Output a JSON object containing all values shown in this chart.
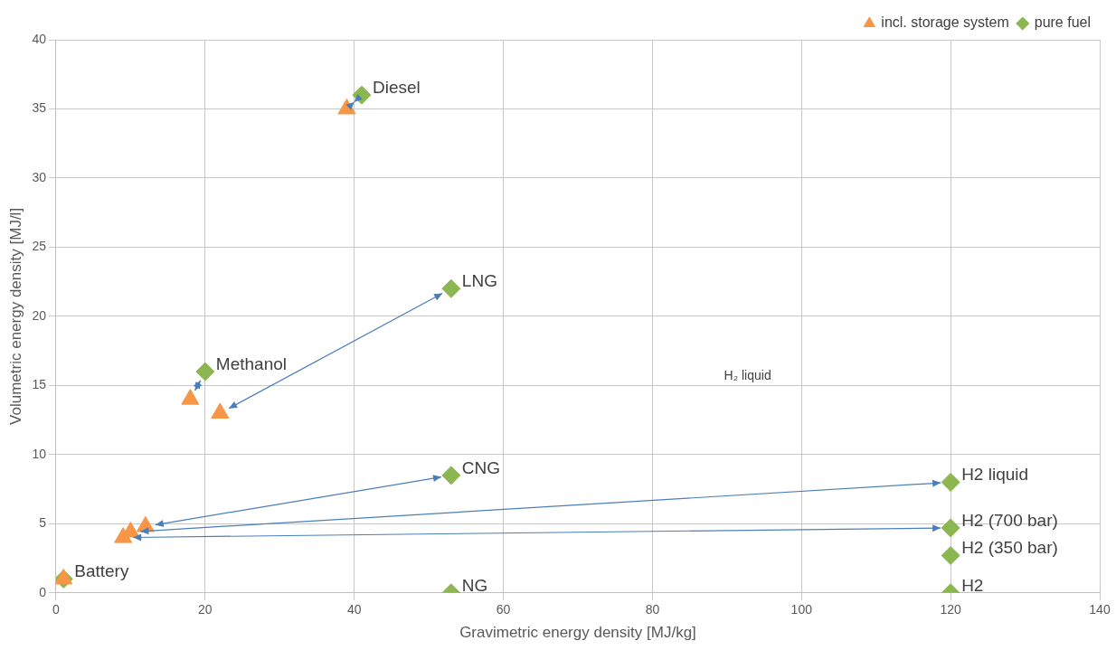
{
  "chart_data": {
    "type": "scatter",
    "xlabel": "Gravimetric energy density [MJ/kg]",
    "ylabel": "Volumetric energy density [MJ/l]",
    "xlim": [
      0,
      140
    ],
    "xticks": [
      0,
      20,
      40,
      60,
      80,
      100,
      120,
      140
    ],
    "ylim": [
      0,
      40
    ],
    "yticks": [
      0,
      5,
      10,
      15,
      20,
      25,
      30,
      35,
      40
    ],
    "grid": true,
    "legend": "top right",
    "series": [
      {
        "name": "pure fuel",
        "color": "#8cb750",
        "marker": "diamond",
        "x": [
          41,
          53,
          20,
          53,
          53,
          1,
          120,
          120,
          120,
          120
        ],
        "values": [
          36,
          22,
          16,
          8.5,
          0,
          1,
          8,
          4.7,
          2.7,
          0
        ]
      },
      {
        "name": "incl. storage system",
        "color": "#f79646",
        "marker": "triangle",
        "x": [
          39,
          22,
          18,
          12,
          null,
          1,
          10,
          9,
          null,
          null
        ],
        "values": [
          35,
          13,
          14,
          4.8,
          null,
          1,
          4.4,
          4,
          null,
          null
        ]
      }
    ],
    "annotations": [
      {
        "text": "Diesel",
        "x": 41,
        "y": 36
      },
      {
        "text": "LNG",
        "x": 53,
        "y": 22
      },
      {
        "text": "Methanol",
        "x": 20,
        "y": 16
      },
      {
        "text": "CNG",
        "x": 53,
        "y": 8.5
      },
      {
        "text": "NG",
        "x": 53,
        "y": 0
      },
      {
        "text": "Battery",
        "x": 1,
        "y": 1
      },
      {
        "text": "H2 liquid",
        "x": 120,
        "y": 8
      },
      {
        "text": "H2 (700 bar)",
        "x": 120,
        "y": 4.7
      },
      {
        "text": "H2 (350 bar)",
        "x": 120,
        "y": 2.7
      },
      {
        "text": "H2",
        "x": 120,
        "y": 0
      },
      "H₂ liquid"
    ]
  }
}
